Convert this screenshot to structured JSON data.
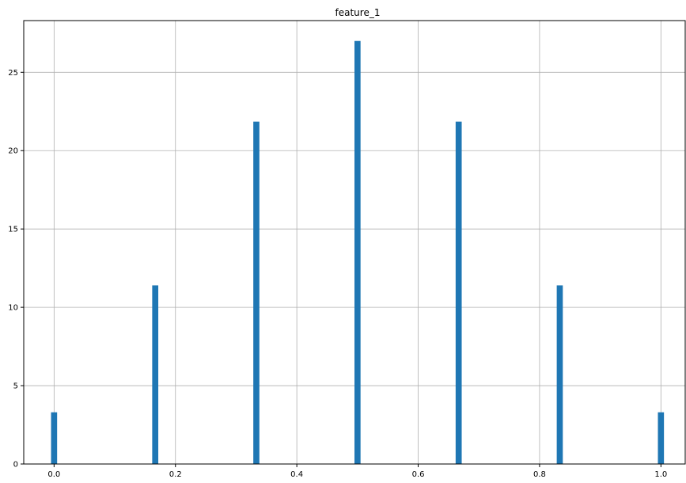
{
  "chart_data": {
    "type": "bar",
    "title": "feature_1",
    "xlabel": "",
    "ylabel": "",
    "x": [
      0.0,
      0.1667,
      0.3333,
      0.5,
      0.6667,
      0.8333,
      1.0
    ],
    "values": [
      3.3,
      11.4,
      21.85,
      27.0,
      21.85,
      11.4,
      3.3
    ],
    "xlim": [
      -0.05,
      1.04
    ],
    "ylim": [
      0,
      28.3
    ],
    "xticks": [
      0.0,
      0.2,
      0.4,
      0.6,
      0.8,
      1.0
    ],
    "xtick_labels": [
      "0.0",
      "0.2",
      "0.4",
      "0.6",
      "0.8",
      "1.0"
    ],
    "yticks": [
      0,
      5,
      10,
      15,
      20,
      25
    ],
    "ytick_labels": [
      "0",
      "5",
      "10",
      "15",
      "20",
      "25"
    ],
    "grid": true,
    "bar_width": 0.01,
    "bar_color": "#1f77b4",
    "grid_color": "#b0b0b0",
    "axis_color": "#000000"
  }
}
